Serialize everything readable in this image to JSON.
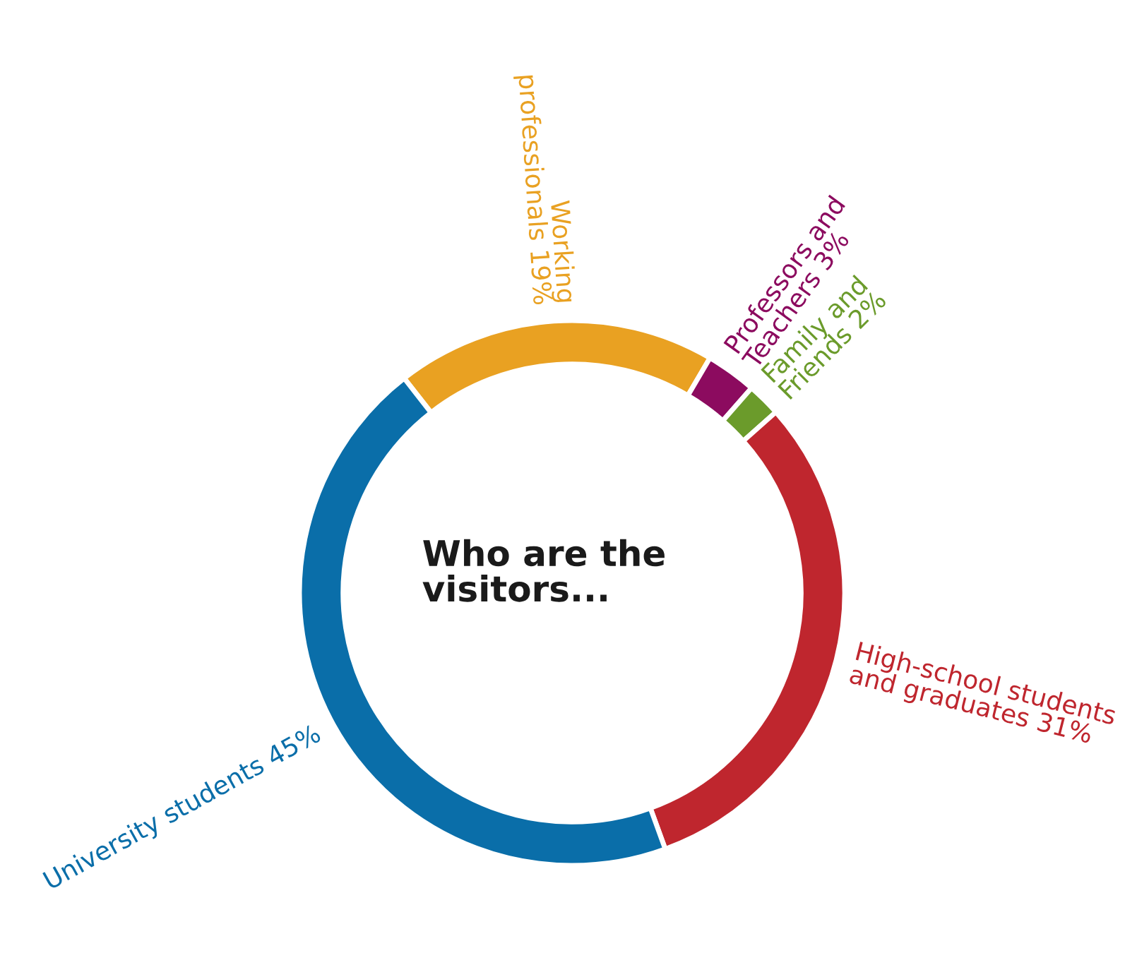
{
  "chart_data": {
    "type": "donut",
    "title": "Who are the\nvisitors...",
    "categories": [
      "Working\nprofessionals",
      "Professors and\nTeachers",
      "Family and\nFriends",
      "High-school students\nand graduates",
      "University students"
    ],
    "values": [
      19,
      3,
      2,
      31,
      45
    ],
    "value_labels": [
      "19%",
      "3%",
      "2%",
      "31%",
      "45%"
    ],
    "colors": [
      "#e9a122",
      "#8c0b5f",
      "#6b9b2b",
      "#bf262e",
      "#0a6ea9"
    ]
  }
}
